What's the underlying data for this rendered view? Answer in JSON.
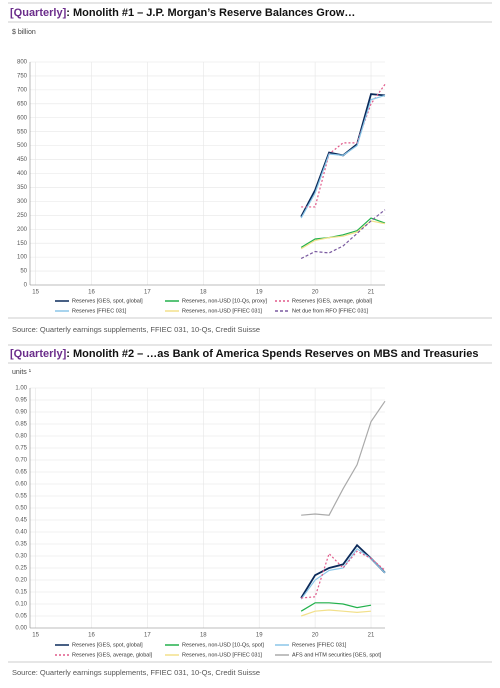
{
  "chart_data": [
    {
      "type": "line",
      "title_tag": "[Quarterly]",
      "title": ": Monolith #1 – J.P. Morgan’s Reserve Balances Grow…",
      "y_label": "$ billion",
      "source": "Source: Quarterly earnings supplements, FFIEC 031, 10-Qs, Credit Suisse",
      "x": [
        19.75,
        20,
        20.25,
        20.5,
        20.75,
        21,
        21.25
      ],
      "xlim": [
        14.9,
        21.25
      ],
      "xticks": [
        15,
        16,
        17,
        18,
        19,
        20,
        21
      ],
      "ylim": [
        0,
        800
      ],
      "yticks": [
        0,
        50,
        100,
        150,
        200,
        250,
        300,
        350,
        400,
        450,
        500,
        550,
        600,
        650,
        700,
        750,
        800
      ],
      "grid": true,
      "series": [
        {
          "name": "Reserves [GES, spot, global]",
          "color": "#0b2a5a",
          "values": [
            245,
            340,
            475,
            465,
            505,
            685,
            680
          ]
        },
        {
          "name": "Reserves, non-USD [10-Qs, proxy]",
          "color": "#22b14c",
          "values": [
            135,
            165,
            170,
            180,
            195,
            240,
            222
          ]
        },
        {
          "name": "Reserves [GES, average, global]",
          "color": "#e05a8a",
          "dash": "2,2",
          "values": [
            280,
            280,
            470,
            510,
            510,
            650,
            720
          ]
        },
        {
          "name": "Reserves [FFIEC 031]",
          "color": "#8ac6e8",
          "values": [
            240,
            330,
            470,
            465,
            500,
            665,
            680
          ]
        },
        {
          "name": "Reserves, non-USD [FFIEC 031]",
          "color": "#f2e08a",
          "values": [
            130,
            160,
            170,
            175,
            190,
            230,
            220
          ]
        },
        {
          "name": "Net due from RFO [FFIEC 031]",
          "color": "#7a5aa0",
          "dash": "3,2",
          "values": [
            95,
            120,
            115,
            140,
            185,
            230,
            270
          ]
        }
      ]
    },
    {
      "type": "line",
      "title_tag": "[Quarterly]",
      "title": ": Monolith #2 – …as Bank of America Spends Reserves on MBS and Treasuries",
      "y_label": "units ¹",
      "source": "Source: Quarterly earnings supplements, FFIEC 031, 10-Qs, Credit Suisse",
      "x": [
        19.75,
        20,
        20.25,
        20.5,
        20.75,
        21,
        21.25
      ],
      "xlim": [
        14.9,
        21.25
      ],
      "xticks": [
        15,
        16,
        17,
        18,
        19,
        20,
        21
      ],
      "ylim": [
        0,
        1
      ],
      "yticks": [
        {
          "value": 0,
          "label": "0.00"
        },
        {
          "value": 0.05,
          "label": "0.05"
        },
        {
          "value": 0.1,
          "label": "0.10"
        },
        {
          "value": 0.15,
          "label": "0.15"
        },
        {
          "value": 0.2,
          "label": "0.20"
        },
        {
          "value": 0.25,
          "label": "0.25"
        },
        {
          "value": 0.3,
          "label": "0.30"
        },
        {
          "value": 0.35,
          "label": "0.35"
        },
        {
          "value": 0.4,
          "label": "0.40"
        },
        {
          "value": 0.45,
          "label": "0.45"
        },
        {
          "value": 0.5,
          "label": "0.50"
        },
        {
          "value": 0.55,
          "label": "0.55"
        },
        {
          "value": 0.6,
          "label": "0.60"
        },
        {
          "value": 0.65,
          "label": "0.65"
        },
        {
          "value": 0.7,
          "label": "0.70"
        },
        {
          "value": 0.75,
          "label": "0.75"
        },
        {
          "value": 0.8,
          "label": "0.80"
        },
        {
          "value": 0.85,
          "label": "0.85"
        },
        {
          "value": 0.9,
          "label": "0.90"
        },
        {
          "value": 0.95,
          "label": "0.95"
        },
        {
          "value": 1,
          "label": "1.00"
        }
      ],
      "grid": true,
      "series": [
        {
          "name": "Reserves [GES, spot, global]",
          "color": "#0b2a5a",
          "values": [
            0.125,
            0.22,
            0.25,
            0.265,
            0.345,
            0.29,
            0.23
          ]
        },
        {
          "name": "Reserves, non-USD [10-Qs, spot]",
          "color": "#22b14c",
          "values": [
            0.07,
            0.105,
            0.105,
            0.1,
            0.085,
            0.095,
            null
          ]
        },
        {
          "name": "Reserves [FFIEC 031]",
          "color": "#8ac6e8",
          "values": [
            0.12,
            0.2,
            0.24,
            0.25,
            0.33,
            0.29,
            0.23
          ]
        },
        {
          "name": "Reserves [GES, average, global]",
          "color": "#e05a8a",
          "dash": "2,2",
          "values": [
            0.125,
            0.13,
            0.31,
            0.25,
            0.32,
            0.29,
            0.24
          ]
        },
        {
          "name": "Reserves, non-USD [FFIEC 031]",
          "color": "#f2e08a",
          "values": [
            0.05,
            0.07,
            0.075,
            0.07,
            0.065,
            0.07,
            null
          ]
        },
        {
          "name": "AFS and HTM securities [GES, spot]",
          "color": "#aaaaaa",
          "values": [
            0.47,
            0.475,
            0.47,
            0.58,
            0.68,
            0.86,
            0.945
          ]
        }
      ]
    }
  ]
}
